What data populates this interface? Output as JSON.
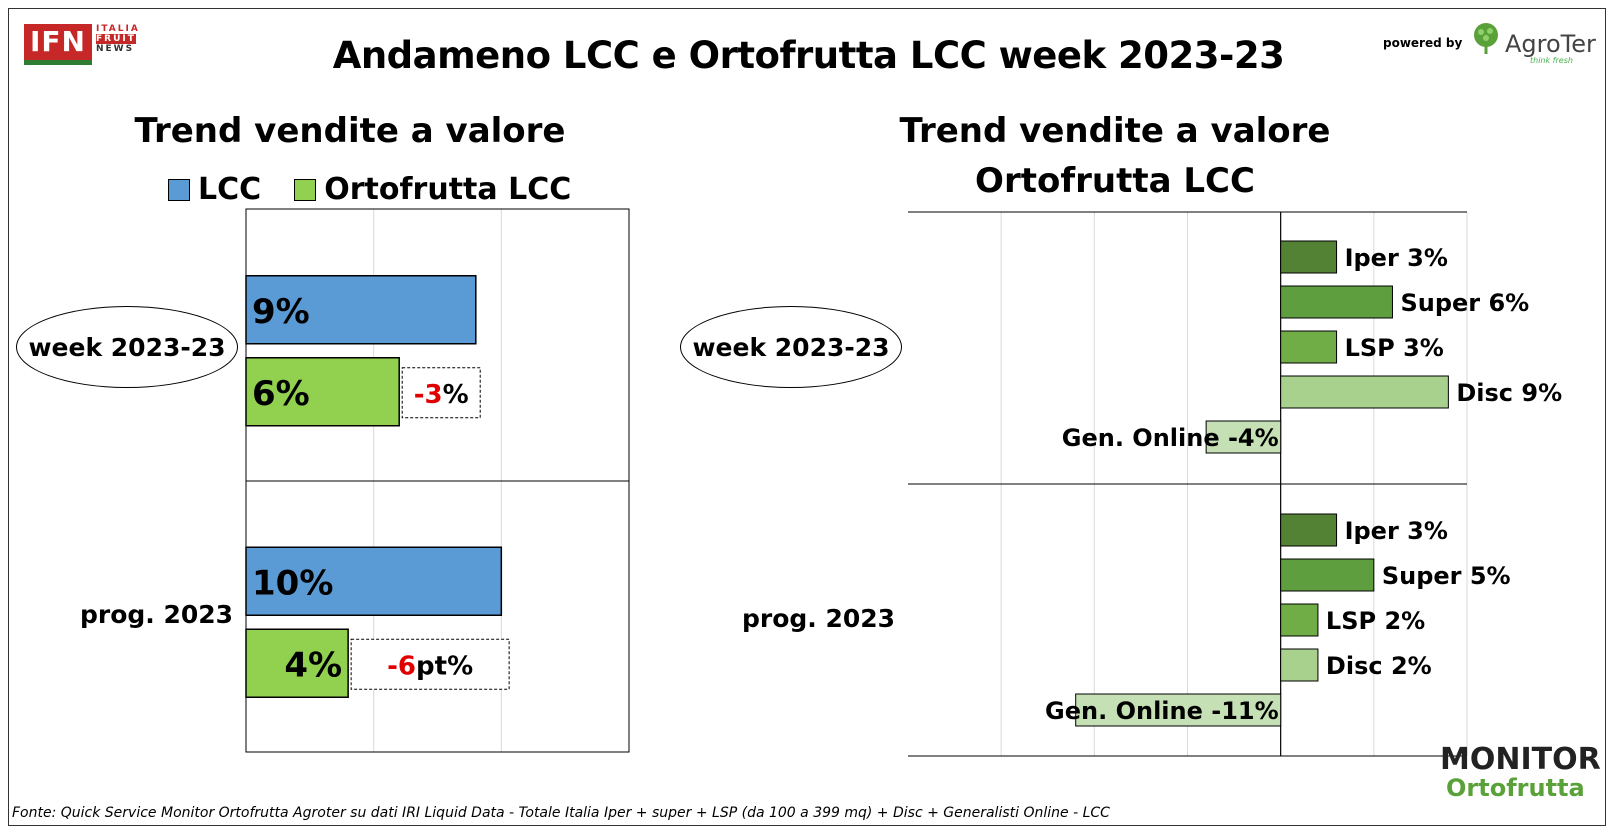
{
  "header": {
    "title": "Andameno LCC e Ortofrutta LCC week 2023-23",
    "ifn_logo_text": "IFN",
    "ifn_logo_side": [
      "ITALIA",
      "FRUIT",
      "NEWS"
    ],
    "powered_by": "powered by",
    "agroter_name": "AgroTer",
    "agroter_tagline": "think fresh"
  },
  "left_panel": {
    "subtitle": "Trend vendite a valore",
    "legend": [
      {
        "label": "LCC",
        "color": "#5b9bd5"
      },
      {
        "label": "Ortofrutta LCC",
        "color": "#92d050"
      }
    ],
    "row_labels": [
      "week 2023-23",
      "prog. 2023"
    ]
  },
  "right_panel": {
    "subtitle_line1": "Trend vendite a valore",
    "subtitle_line2": "Ortofrutta LCC",
    "row_labels": [
      "week 2023-23",
      "prog. 2023"
    ]
  },
  "chart_data": [
    {
      "type": "bar",
      "orientation": "horizontal",
      "title": "Trend vendite a valore",
      "categories": [
        "week 2023-23",
        "prog. 2023"
      ],
      "series": [
        {
          "name": "LCC",
          "values": [
            9,
            10
          ],
          "labels": [
            "9%",
            "10%"
          ],
          "color": "#5b9bd5"
        },
        {
          "name": "Ortofrutta LCC",
          "values": [
            6,
            4
          ],
          "labels": [
            "6%",
            "4%"
          ],
          "color": "#92d050"
        }
      ],
      "xlim": [
        0,
        15
      ],
      "grid": true,
      "annotations": [
        {
          "category": "week 2023-23",
          "prefix": "-3",
          "suffix": "%"
        },
        {
          "category": "prog. 2023",
          "prefix": "-6",
          "suffix": "pt%"
        }
      ]
    },
    {
      "type": "bar",
      "orientation": "horizontal",
      "title": "Trend vendite a valore Ortofrutta LCC",
      "categories": [
        "week 2023-23",
        "prog. 2023"
      ],
      "xlim": [
        -20,
        10
      ],
      "grid": true,
      "series": [
        {
          "name": "Iper",
          "values": [
            3,
            3
          ],
          "labels": [
            "Iper 3%",
            "Iper 3%"
          ],
          "color": "#548235"
        },
        {
          "name": "Super",
          "values": [
            6,
            5
          ],
          "labels": [
            "Super 6%",
            "Super 5%"
          ],
          "color": "#5f9e3f"
        },
        {
          "name": "LSP",
          "values": [
            3,
            2
          ],
          "labels": [
            "LSP 3%",
            "LSP 2%"
          ],
          "color": "#70ad47"
        },
        {
          "name": "Disc",
          "values": [
            9,
            2
          ],
          "labels": [
            "Disc 9%",
            "Disc 2%"
          ],
          "color": "#a9d18e"
        },
        {
          "name": "Gen. Online",
          "values": [
            -4,
            -11
          ],
          "labels": [
            "Gen. Online -4%",
            "Gen. Online -11%"
          ],
          "color": "#c5e0b4"
        }
      ]
    }
  ],
  "footer": {
    "source": "Fonte: Quick Service Monitor Ortofrutta Agroter su dati IRI Liquid Data - Totale Italia Iper + super + LSP (da 100 a 399 mq) + Disc + Generalisti Online - LCC",
    "monitor_line1": "MONITOR",
    "monitor_line2": "Ortofrutta"
  }
}
